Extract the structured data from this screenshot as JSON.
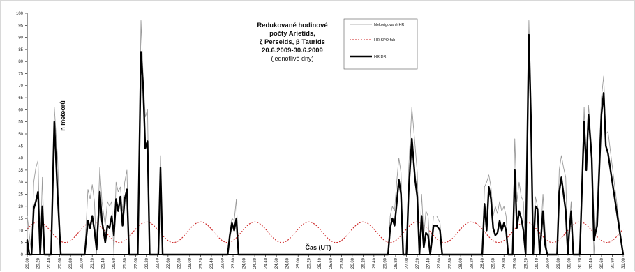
{
  "chart_data": {
    "type": "line",
    "title_lines": [
      "Redukované hodinové",
      "počty Arietids,",
      "ζ Perseids, β Taurids",
      "20.6.2009-30.6.2009"
    ],
    "subtitle": "(jednotlivé dny)",
    "xlabel": "Čas (UT)",
    "ylabel": "n meteorů",
    "ylim": [
      0,
      100
    ],
    "ytick_step": 5,
    "x_range": [
      20.0,
      31.0
    ],
    "x_tick_labels": [
      "20.00",
      "20.20",
      "20.40",
      "20.60",
      "20.80",
      "21.00",
      "21.20",
      "21.40",
      "21.60",
      "21.80",
      "22.00",
      "22.20",
      "22.40",
      "22.60",
      "22.80",
      "23.00",
      "23.20",
      "23.40",
      "23.60",
      "23.80",
      "24.00",
      "24.20",
      "24.40",
      "24.60",
      "24.80",
      "25.00",
      "25.20",
      "25.40",
      "25.60",
      "25.80",
      "26.00",
      "26.20",
      "26.40",
      "26.60",
      "26.80",
      "27.00",
      "27.20",
      "27.40",
      "27.60",
      "27.80",
      "28.00",
      "28.20",
      "28.40",
      "28.60",
      "28.80",
      "29.00",
      "29.20",
      "29.40",
      "29.60",
      "29.80",
      "30.00",
      "30.20",
      "30.40",
      "30.60",
      "30.80",
      "31.00"
    ],
    "grid": false,
    "legend_placement": "top-center",
    "series": [
      {
        "name": "Nekorigované HR",
        "color": "#9a9a9a",
        "style": "solid-thin",
        "points": [
          [
            20.0,
            16
          ],
          [
            20.04,
            8
          ],
          [
            20.08,
            0
          ],
          [
            20.12,
            30
          ],
          [
            20.16,
            36
          ],
          [
            20.2,
            39
          ],
          [
            20.24,
            0
          ],
          [
            20.28,
            32
          ],
          [
            20.32,
            0
          ],
          [
            20.36,
            0
          ],
          [
            20.4,
            0
          ],
          [
            20.44,
            0
          ],
          [
            20.5,
            61
          ],
          [
            20.56,
            40
          ],
          [
            20.62,
            0
          ],
          [
            20.7,
            0
          ],
          [
            21.0,
            0
          ],
          [
            21.06,
            0
          ],
          [
            21.12,
            27
          ],
          [
            21.16,
            23
          ],
          [
            21.2,
            29
          ],
          [
            21.24,
            22
          ],
          [
            21.28,
            0
          ],
          [
            21.34,
            36
          ],
          [
            21.38,
            22
          ],
          [
            21.44,
            12
          ],
          [
            21.48,
            22
          ],
          [
            21.52,
            20
          ],
          [
            21.56,
            22
          ],
          [
            21.6,
            0
          ],
          [
            21.64,
            30
          ],
          [
            21.68,
            26
          ],
          [
            21.72,
            28
          ],
          [
            21.76,
            18
          ],
          [
            21.8,
            30
          ],
          [
            21.84,
            35
          ],
          [
            21.88,
            0
          ],
          [
            22.0,
            0
          ],
          [
            22.04,
            0
          ],
          [
            22.1,
            97
          ],
          [
            22.14,
            74
          ],
          [
            22.18,
            57
          ],
          [
            22.22,
            60
          ],
          [
            22.26,
            0
          ],
          [
            22.32,
            0
          ],
          [
            22.38,
            0
          ],
          [
            22.42,
            0
          ],
          [
            22.46,
            41
          ],
          [
            22.5,
            0
          ],
          [
            22.55,
            0
          ],
          [
            23.7,
            0
          ],
          [
            23.74,
            10
          ],
          [
            23.78,
            15
          ],
          [
            23.82,
            14
          ],
          [
            23.86,
            23
          ],
          [
            23.9,
            0
          ],
          [
            26.6,
            0
          ],
          [
            26.66,
            0
          ],
          [
            26.7,
            16
          ],
          [
            26.74,
            20
          ],
          [
            26.78,
            18
          ],
          [
            26.82,
            30
          ],
          [
            26.86,
            40
          ],
          [
            26.9,
            34
          ],
          [
            26.94,
            0
          ],
          [
            27.0,
            0
          ],
          [
            27.04,
            35
          ],
          [
            27.1,
            61
          ],
          [
            27.16,
            45
          ],
          [
            27.2,
            34
          ],
          [
            27.24,
            0
          ],
          [
            27.28,
            25
          ],
          [
            27.32,
            8
          ],
          [
            27.36,
            18
          ],
          [
            27.4,
            16
          ],
          [
            27.44,
            0
          ],
          [
            27.5,
            16
          ],
          [
            27.56,
            16
          ],
          [
            27.62,
            13
          ],
          [
            27.66,
            0
          ],
          [
            27.7,
            0
          ],
          [
            28.4,
            0
          ],
          [
            28.44,
            28
          ],
          [
            28.48,
            30
          ],
          [
            28.52,
            33
          ],
          [
            28.56,
            28
          ],
          [
            28.6,
            16
          ],
          [
            28.64,
            20
          ],
          [
            28.68,
            17
          ],
          [
            28.72,
            22
          ],
          [
            28.76,
            18
          ],
          [
            28.8,
            20
          ],
          [
            28.84,
            16
          ],
          [
            28.88,
            0
          ],
          [
            28.92,
            0
          ],
          [
            28.96,
            0
          ],
          [
            29.0,
            48
          ],
          [
            29.04,
            22
          ],
          [
            29.08,
            30
          ],
          [
            29.12,
            24
          ],
          [
            29.16,
            22
          ],
          [
            29.2,
            0
          ],
          [
            29.26,
            97
          ],
          [
            29.3,
            60
          ],
          [
            29.34,
            0
          ],
          [
            29.38,
            24
          ],
          [
            29.42,
            20
          ],
          [
            29.46,
            0
          ],
          [
            29.52,
            25
          ],
          [
            29.56,
            10
          ],
          [
            29.6,
            0
          ],
          [
            29.78,
            0
          ],
          [
            29.82,
            35
          ],
          [
            29.86,
            41
          ],
          [
            29.9,
            36
          ],
          [
            29.94,
            32
          ],
          [
            29.98,
            0
          ],
          [
            30.0,
            10
          ],
          [
            30.04,
            22
          ],
          [
            30.08,
            0
          ],
          [
            30.12,
            0
          ],
          [
            30.16,
            0
          ],
          [
            30.2,
            0
          ],
          [
            30.28,
            61
          ],
          [
            30.32,
            35
          ],
          [
            30.36,
            62
          ],
          [
            30.42,
            44
          ],
          [
            30.46,
            0
          ],
          [
            30.52,
            20
          ],
          [
            30.6,
            65
          ],
          [
            30.64,
            74
          ],
          [
            30.68,
            50
          ],
          [
            30.72,
            51
          ]
        ]
      },
      {
        "name": "HR SPO fab",
        "color": "#cc2222",
        "style": "dotted",
        "sine": {
          "mean": 9.25,
          "amplitude": 4.25,
          "period": 1.0,
          "peak_x": 20.2
        },
        "values_description": "oscillates between about 5 and 13.5 with a 1-day period"
      },
      {
        "name": "HR DR",
        "color": "#000000",
        "style": "solid-thick",
        "points": [
          [
            20.0,
            6
          ],
          [
            20.04,
            0
          ],
          [
            20.08,
            0
          ],
          [
            20.12,
            19
          ],
          [
            20.16,
            22
          ],
          [
            20.2,
            26
          ],
          [
            20.24,
            0
          ],
          [
            20.28,
            20
          ],
          [
            20.32,
            0
          ],
          [
            20.36,
            0
          ],
          [
            20.4,
            0
          ],
          [
            20.44,
            0
          ],
          [
            20.5,
            55
          ],
          [
            20.56,
            25
          ],
          [
            20.62,
            0
          ],
          [
            20.7,
            0
          ],
          [
            21.0,
            0
          ],
          [
            21.06,
            0
          ],
          [
            21.12,
            14
          ],
          [
            21.16,
            11
          ],
          [
            21.2,
            16
          ],
          [
            21.24,
            10
          ],
          [
            21.28,
            2
          ],
          [
            21.34,
            26
          ],
          [
            21.38,
            14
          ],
          [
            21.44,
            5
          ],
          [
            21.48,
            12
          ],
          [
            21.52,
            11
          ],
          [
            21.56,
            16
          ],
          [
            21.6,
            8
          ],
          [
            21.64,
            23
          ],
          [
            21.68,
            18
          ],
          [
            21.72,
            24
          ],
          [
            21.76,
            12
          ],
          [
            21.8,
            23
          ],
          [
            21.84,
            27
          ],
          [
            21.88,
            0
          ],
          [
            22.0,
            0
          ],
          [
            22.04,
            0
          ],
          [
            22.1,
            84
          ],
          [
            22.14,
            70
          ],
          [
            22.18,
            44
          ],
          [
            22.22,
            47
          ],
          [
            22.26,
            0
          ],
          [
            22.32,
            0
          ],
          [
            22.38,
            0
          ],
          [
            22.42,
            0
          ],
          [
            22.46,
            36
          ],
          [
            22.5,
            0
          ],
          [
            22.55,
            0
          ],
          [
            23.7,
            0
          ],
          [
            23.74,
            8
          ],
          [
            23.78,
            13
          ],
          [
            23.82,
            10
          ],
          [
            23.86,
            15
          ],
          [
            23.9,
            0
          ],
          [
            26.6,
            0
          ],
          [
            26.66,
            0
          ],
          [
            26.7,
            11
          ],
          [
            26.74,
            15
          ],
          [
            26.78,
            12
          ],
          [
            26.82,
            21
          ],
          [
            26.86,
            31
          ],
          [
            26.9,
            25
          ],
          [
            26.94,
            0
          ],
          [
            27.0,
            0
          ],
          [
            27.04,
            26
          ],
          [
            27.1,
            48
          ],
          [
            27.16,
            31
          ],
          [
            27.2,
            24
          ],
          [
            27.24,
            0
          ],
          [
            27.28,
            16
          ],
          [
            27.32,
            3
          ],
          [
            27.36,
            9
          ],
          [
            27.4,
            8
          ],
          [
            27.44,
            0
          ],
          [
            27.5,
            12
          ],
          [
            27.56,
            12
          ],
          [
            27.62,
            10
          ],
          [
            27.66,
            0
          ],
          [
            27.7,
            0
          ],
          [
            28.4,
            0
          ],
          [
            28.44,
            21
          ],
          [
            28.48,
            10
          ],
          [
            28.52,
            28
          ],
          [
            28.56,
            23
          ],
          [
            28.6,
            11
          ],
          [
            28.64,
            8
          ],
          [
            28.68,
            9
          ],
          [
            28.72,
            14
          ],
          [
            28.76,
            10
          ],
          [
            28.8,
            13
          ],
          [
            28.84,
            10
          ],
          [
            28.88,
            0
          ],
          [
            28.92,
            0
          ],
          [
            28.96,
            0
          ],
          [
            29.0,
            35
          ],
          [
            29.04,
            11
          ],
          [
            29.08,
            18
          ],
          [
            29.12,
            15
          ],
          [
            29.16,
            10
          ],
          [
            29.2,
            0
          ],
          [
            29.26,
            91
          ],
          [
            29.3,
            55
          ],
          [
            29.34,
            0
          ],
          [
            29.38,
            20
          ],
          [
            29.42,
            19
          ],
          [
            29.46,
            0
          ],
          [
            29.52,
            18
          ],
          [
            29.56,
            4
          ],
          [
            29.6,
            0
          ],
          [
            29.78,
            0
          ],
          [
            29.82,
            26
          ],
          [
            29.86,
            32
          ],
          [
            29.9,
            25
          ],
          [
            29.94,
            18
          ],
          [
            29.98,
            0
          ],
          [
            30.0,
            8
          ],
          [
            30.04,
            18
          ],
          [
            30.08,
            0
          ],
          [
            30.12,
            0
          ],
          [
            30.16,
            0
          ],
          [
            30.2,
            0
          ],
          [
            30.28,
            55
          ],
          [
            30.32,
            35
          ],
          [
            30.36,
            58
          ],
          [
            30.42,
            40
          ],
          [
            30.46,
            6
          ],
          [
            30.52,
            12
          ],
          [
            30.6,
            58
          ],
          [
            30.64,
            67
          ],
          [
            30.68,
            45
          ],
          [
            30.72,
            42
          ]
        ]
      }
    ]
  }
}
